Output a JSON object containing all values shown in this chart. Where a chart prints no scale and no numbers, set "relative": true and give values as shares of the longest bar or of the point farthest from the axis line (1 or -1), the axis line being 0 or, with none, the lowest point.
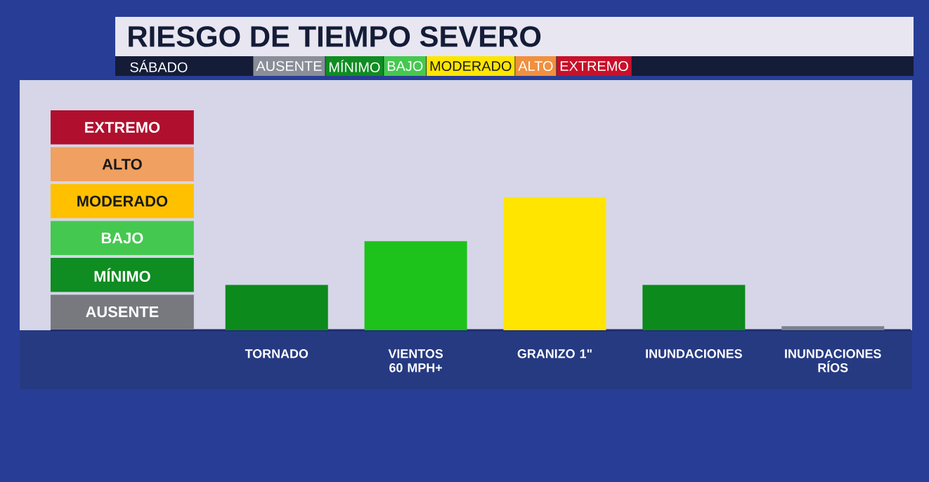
{
  "chart_data": {
    "type": "bar",
    "title": "RIESGO DE TIEMPO SEVERO",
    "subtitle": "SÁBADO",
    "categories": [
      "TORNADO",
      "VIENTOS 60 MPH+",
      "GRANIZO 1\"",
      "INUNDACIONES",
      "INUNDACIONES RÍOS"
    ],
    "values": [
      0.34,
      0.67,
      1,
      0.34,
      0.03
    ],
    "colors": [
      "#0d8a1c",
      "#1dc21a",
      "#ffe500",
      "#0d8a1c",
      "#7a8290"
    ],
    "relative": true,
    "annotations": [
      "AUSENTE",
      "MÍNIMO",
      "BAJO",
      "MODERADO",
      "ALTO",
      "EXTREMO",
      "AUSENTE",
      "MÍNIMO",
      "BAJO",
      "MODERADO",
      "ALTO",
      "EXTREMO"
    ]
  }
}
